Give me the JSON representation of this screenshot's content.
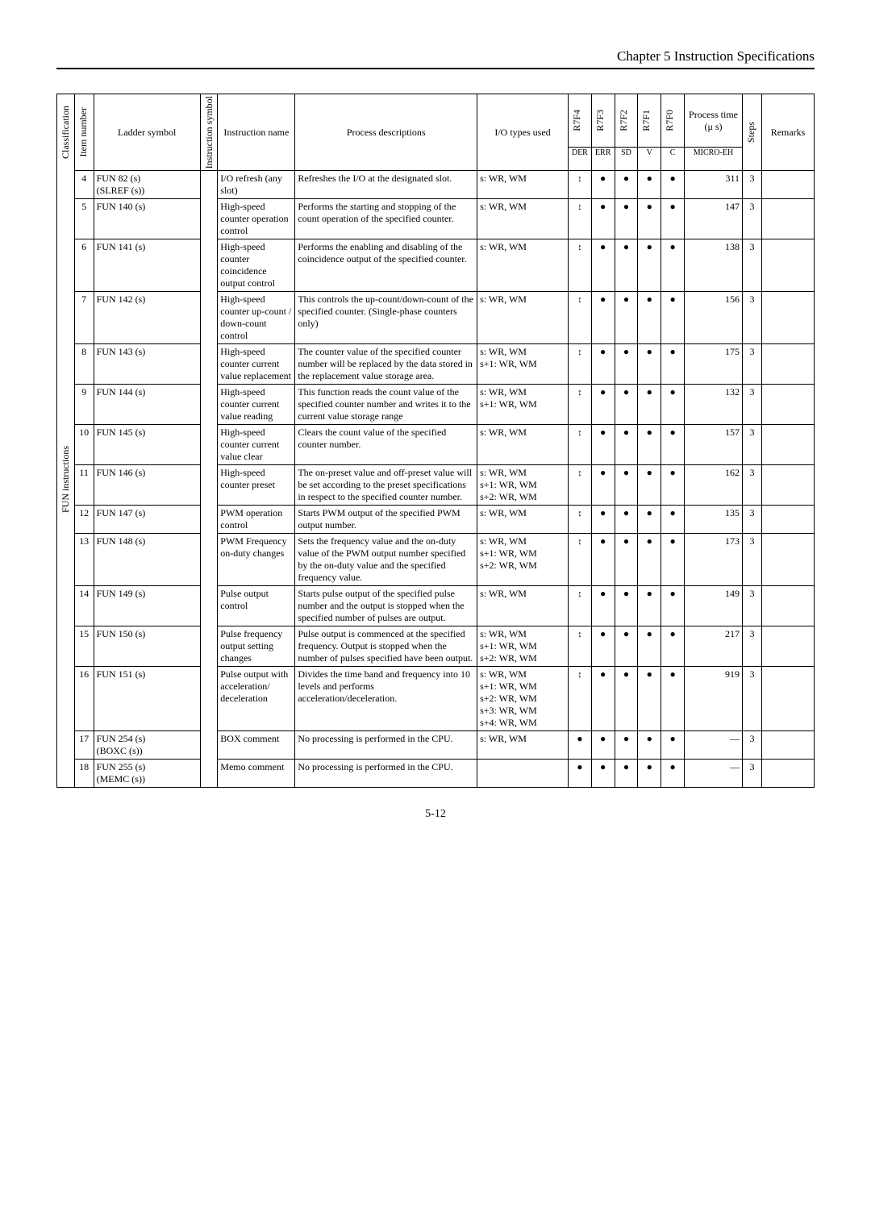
{
  "chapter_header": "Chapter 5  Instruction Specifications",
  "page_footer": "5-12",
  "columns": {
    "classification": "Classification",
    "item_number": "Item number",
    "ladder_symbol": "Ladder symbol",
    "instruction_symbol": "Instruction symbol",
    "instruction_name": "Instruction name",
    "process_desc": "Process descriptions",
    "io_types": "I/O types used",
    "r7f4": "R7F4",
    "r7f3": "R7F3",
    "r7f2": "R7F2",
    "r7f1": "R7F1",
    "r7f0": "R7F0",
    "process_time": "Process time (μ s)",
    "steps": "Steps",
    "remarks": "Remarks"
  },
  "sub_header": {
    "der": "DER",
    "err": "ERR",
    "sd": "SD",
    "v": "V",
    "c": "C",
    "microeh": "MICRO-EH"
  },
  "classification_label": "FUN instructions",
  "updown_glyph": "↕",
  "dot_glyph": "●",
  "dash_glyph": "—",
  "rows": [
    {
      "item": "4",
      "ladder": "FUN 82 (s)\n(SLREF (s))",
      "name": "I/O refresh (any slot)",
      "proc": "Refreshes the I/O at the designated slot.",
      "io": "s: WR, WM",
      "f4": "updn",
      "f3": "dot",
      "f2": "dot",
      "f1": "dot",
      "f0": "dot",
      "time": "311",
      "steps": "3"
    },
    {
      "item": "5",
      "ladder": "FUN 140 (s)",
      "name": "High-speed counter operation control",
      "proc": "Performs the starting and stopping of the count operation of the specified counter.",
      "io": "s: WR, WM",
      "f4": "updn",
      "f3": "dot",
      "f2": "dot",
      "f1": "dot",
      "f0": "dot",
      "time": "147",
      "steps": "3"
    },
    {
      "item": "6",
      "ladder": "FUN 141 (s)",
      "name": "High-speed counter coincidence output control",
      "proc": "Performs the enabling and disabling of the coincidence output of the specified counter.",
      "io": "s: WR, WM",
      "f4": "updn",
      "f3": "dot",
      "f2": "dot",
      "f1": "dot",
      "f0": "dot",
      "time": "138",
      "steps": "3"
    },
    {
      "item": "7",
      "ladder": "FUN 142 (s)",
      "name": "High-speed counter up-count / down-count control",
      "proc": "This controls the up-count/down-count of the specified counter. (Single-phase counters only)",
      "io": "s: WR, WM",
      "f4": "updn",
      "f3": "dot",
      "f2": "dot",
      "f1": "dot",
      "f0": "dot",
      "time": "156",
      "steps": "3"
    },
    {
      "item": "8",
      "ladder": "FUN 143 (s)",
      "name": "High-speed counter current value replacement",
      "proc": "The counter value of the specified counter number will be replaced by the data stored in the replacement value storage area.",
      "io": "s: WR, WM\ns+1: WR, WM",
      "f4": "updn",
      "f3": "dot",
      "f2": "dot",
      "f1": "dot",
      "f0": "dot",
      "time": "175",
      "steps": "3"
    },
    {
      "item": "9",
      "ladder": "FUN 144 (s)",
      "name": "High-speed counter current value reading",
      "proc": "This function reads the count value of the specified counter number and writes it to the current value storage range",
      "io": "s: WR, WM\ns+1: WR, WM",
      "f4": "updn",
      "f3": "dot",
      "f2": "dot",
      "f1": "dot",
      "f0": "dot",
      "time": "132",
      "steps": "3"
    },
    {
      "item": "10",
      "ladder": "FUN 145 (s)",
      "name": "High-speed counter current value clear",
      "proc": "Clears the count value of the specified counter number.",
      "io": "s: WR, WM",
      "f4": "updn",
      "f3": "dot",
      "f2": "dot",
      "f1": "dot",
      "f0": "dot",
      "time": "157",
      "steps": "3"
    },
    {
      "item": "11",
      "ladder": "FUN 146 (s)",
      "name": "High-speed counter preset",
      "proc": "The on-preset value and off-preset value will be set according to the preset specifications in respect to the specified counter number.",
      "io": "s: WR, WM\ns+1: WR, WM\ns+2: WR, WM",
      "f4": "updn",
      "f3": "dot",
      "f2": "dot",
      "f1": "dot",
      "f0": "dot",
      "time": "162",
      "steps": "3"
    },
    {
      "item": "12",
      "ladder": "FUN 147 (s)",
      "name": "PWM operation control",
      "proc": "Starts PWM output of  the specified PWM output number.",
      "io": "s: WR, WM",
      "f4": "updn",
      "f3": "dot",
      "f2": "dot",
      "f1": "dot",
      "f0": "dot",
      "time": "135",
      "steps": "3"
    },
    {
      "item": "13",
      "ladder": "FUN 148 (s)",
      "name": "PWM Frequency on-duty changes",
      "proc": "Sets the frequency value and the on-duty value of the PWM output number specified by the on-duty value and the specified frequency value.",
      "io": "s: WR, WM\ns+1: WR, WM\ns+2: WR, WM",
      "f4": "updn",
      "f3": "dot",
      "f2": "dot",
      "f1": "dot",
      "f0": "dot",
      "time": "173",
      "steps": "3"
    },
    {
      "item": "14",
      "ladder": "FUN 149 (s)",
      "name": "Pulse output control",
      "proc": "Starts pulse output of the specified pulse number and the output is stopped when the specified number of pulses are output.",
      "io": "s: WR, WM",
      "f4": "updn",
      "f3": "dot",
      "f2": "dot",
      "f1": "dot",
      "f0": "dot",
      "time": "149",
      "steps": "3"
    },
    {
      "item": "15",
      "ladder": "FUN 150 (s)",
      "name": "Pulse frequency output setting changes",
      "proc": "Pulse output is commenced at the specified frequency. Output is stopped when the number of pulses specified have been output.",
      "io": "s: WR, WM\ns+1: WR, WM\ns+2: WR, WM",
      "f4": "updn",
      "f3": "dot",
      "f2": "dot",
      "f1": "dot",
      "f0": "dot",
      "time": "217",
      "steps": "3"
    },
    {
      "item": "16",
      "ladder": "FUN 151 (s)",
      "name": "Pulse output with acceleration/ deceleration",
      "proc": "Divides the time band and frequency into 10 levels and performs acceleration/deceleration.",
      "io": "s: WR, WM\ns+1: WR, WM\ns+2: WR, WM\ns+3: WR, WM\ns+4: WR, WM",
      "f4": "updn",
      "f3": "dot",
      "f2": "dot",
      "f1": "dot",
      "f0": "dot",
      "time": "919",
      "steps": "3"
    },
    {
      "item": "17",
      "ladder": "FUN 254 (s)\n(BOXC (s))",
      "name": "BOX comment",
      "proc": "No processing is performed in the CPU.",
      "io": "s: WR, WM",
      "f4": "dot",
      "f3": "dot",
      "f2": "dot",
      "f1": "dot",
      "f0": "dot",
      "time": "—",
      "steps": "3"
    },
    {
      "item": "18",
      "ladder": "FUN 255 (s)\n(MEMC (s))",
      "name": "Memo comment",
      "proc": "No processing is performed in the CPU.",
      "io": "",
      "f4": "dot",
      "f3": "dot",
      "f2": "dot",
      "f1": "dot",
      "f0": "dot",
      "time": "—",
      "steps": "3"
    }
  ]
}
